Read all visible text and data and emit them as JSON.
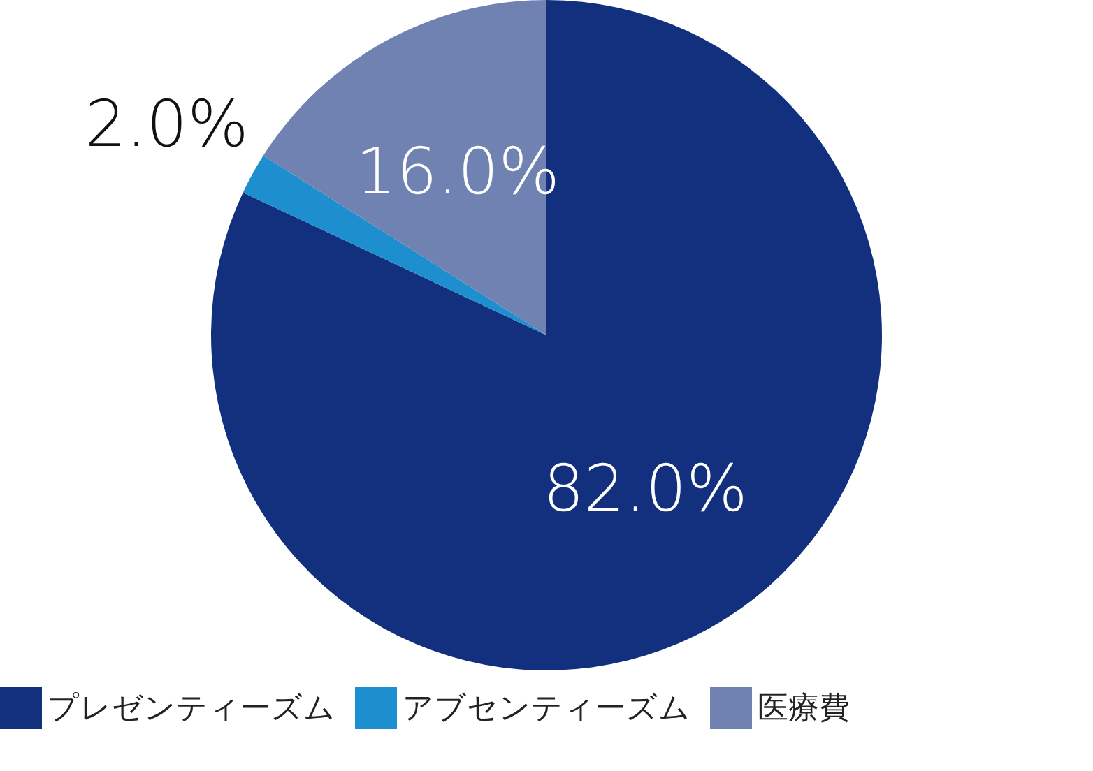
{
  "chart_data": {
    "type": "pie",
    "categories": [
      "プレゼンティーズム",
      "アブセンティーズム",
      "医療費"
    ],
    "values": [
      82,
      2,
      16
    ],
    "colors": [
      "#13307f",
      "#1e8fce",
      "#6f82b2"
    ],
    "value_labels": [
      "82.0%",
      "2.0%",
      "16.0%"
    ],
    "legend": "bottom"
  }
}
